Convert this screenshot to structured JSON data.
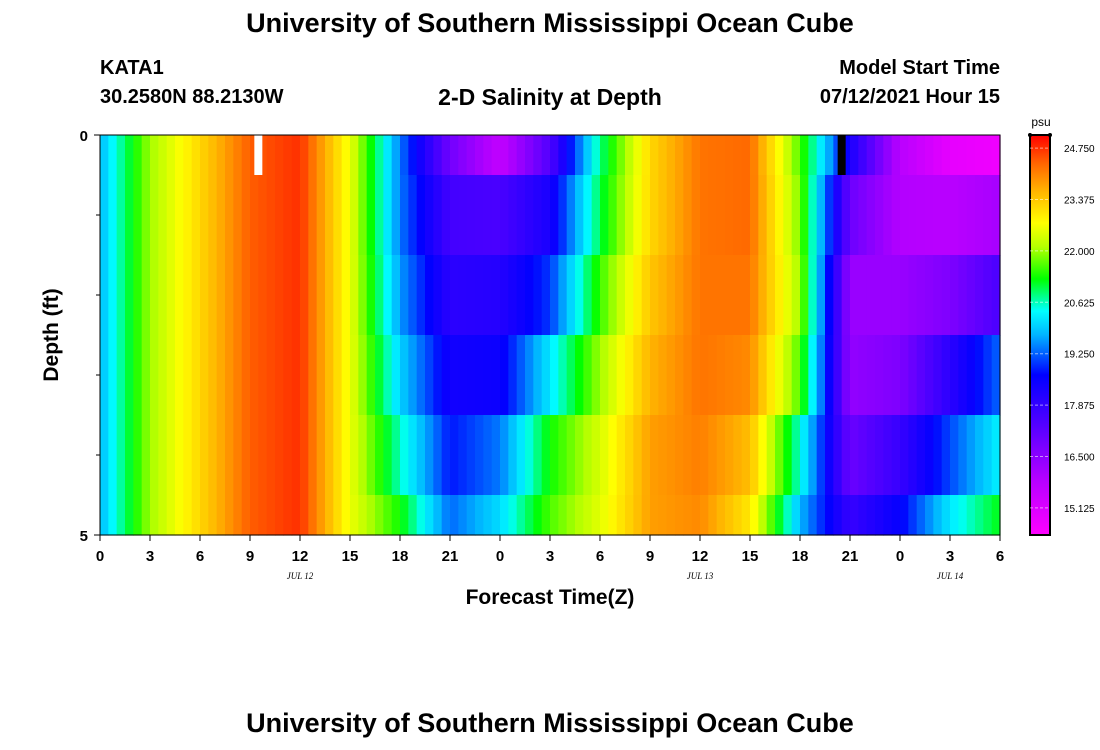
{
  "page": {
    "title": "University of Southern Mississippi Ocean Cube",
    "footer_title": "University of Southern Mississippi Ocean Cube",
    "station": "KATA1",
    "coordinates": "30.2580N  88.2130W",
    "subtitle": "2-D Salinity at Depth",
    "model_start_label": "Model Start Time",
    "model_start_value": "07/12/2021 Hour 15"
  },
  "chart_data": {
    "type": "heatmap",
    "title": "2-D Salinity at Depth",
    "xlabel": "Forecast Time(Z)",
    "ylabel": "Depth (ft)",
    "x_hours_range": [
      0,
      54
    ],
    "x_ticks": [
      {
        "hour": 0,
        "label": "0"
      },
      {
        "hour": 3,
        "label": "3"
      },
      {
        "hour": 6,
        "label": "6"
      },
      {
        "hour": 9,
        "label": "9"
      },
      {
        "hour": 12,
        "label": "12"
      },
      {
        "hour": 15,
        "label": "15"
      },
      {
        "hour": 18,
        "label": "18"
      },
      {
        "hour": 21,
        "label": "21"
      },
      {
        "hour": 24,
        "label": "0"
      },
      {
        "hour": 27,
        "label": "3"
      },
      {
        "hour": 30,
        "label": "6"
      },
      {
        "hour": 33,
        "label": "9"
      },
      {
        "hour": 36,
        "label": "12"
      },
      {
        "hour": 39,
        "label": "15"
      },
      {
        "hour": 42,
        "label": "18"
      },
      {
        "hour": 45,
        "label": "21"
      },
      {
        "hour": 48,
        "label": "0"
      },
      {
        "hour": 51,
        "label": "3"
      },
      {
        "hour": 54,
        "label": "6"
      }
    ],
    "date_labels": [
      {
        "hour": 12,
        "label": "JUL 12"
      },
      {
        "hour": 36,
        "label": "JUL 13"
      },
      {
        "hour": 51,
        "label": "JUL 14"
      }
    ],
    "ylim": [
      0,
      5
    ],
    "y_ticks": [
      {
        "value": 0,
        "label": "0"
      },
      {
        "value": 5,
        "label": "5"
      }
    ],
    "y_minor_ticks": [
      1,
      2,
      3,
      4
    ],
    "depth_levels": [
      0.25,
      1.0,
      2.0,
      3.0,
      4.0,
      4.75
    ],
    "depth_level_bounds": [
      [
        0,
        0.5
      ],
      [
        0.5,
        1.5
      ],
      [
        1.5,
        2.5
      ],
      [
        2.5,
        3.5
      ],
      [
        3.5,
        4.5
      ],
      [
        4.5,
        5
      ]
    ],
    "salinity_psu": [
      [
        19.8,
        22.0,
        23.2,
        24.4,
        24.75,
        22.6,
        19.4,
        16.9,
        15.6,
        17.4,
        20.8,
        23.2,
        24.2,
        24.3,
        21.6,
        18.3,
        15.8,
        14.9,
        14.7
      ],
      [
        19.8,
        22.0,
        23.2,
        24.4,
        24.75,
        22.6,
        19.4,
        17.6,
        17.5,
        18.3,
        21.0,
        23.2,
        24.2,
        24.3,
        21.8,
        17.0,
        15.9,
        15.8,
        16.1
      ],
      [
        19.8,
        22.0,
        23.2,
        24.4,
        24.75,
        22.6,
        19.6,
        18.0,
        18.1,
        19.0,
        21.5,
        23.4,
        24.2,
        24.2,
        22.0,
        16.3,
        16.3,
        16.7,
        17.5
      ],
      [
        19.8,
        22.0,
        23.2,
        24.4,
        24.75,
        22.6,
        20.0,
        18.4,
        18.5,
        20.2,
        22.0,
        23.6,
        24.2,
        24.0,
        21.6,
        16.4,
        16.7,
        18.0,
        19.3
      ],
      [
        19.8,
        22.0,
        23.2,
        24.4,
        24.75,
        22.6,
        20.6,
        18.8,
        19.4,
        21.3,
        22.4,
        23.8,
        24.1,
        23.5,
        20.5,
        17.0,
        17.8,
        19.1,
        20.3
      ],
      [
        19.8,
        22.0,
        23.2,
        24.4,
        24.75,
        22.6,
        21.3,
        19.3,
        20.1,
        21.6,
        22.5,
        23.8,
        24.0,
        23.0,
        19.8,
        17.8,
        18.6,
        20.2,
        21.2
      ]
    ],
    "markers": [
      {
        "hour": 9.5,
        "color": "#ffffff",
        "meaning": "current time"
      },
      {
        "hour": 44.5,
        "color": "#000000",
        "meaning": "marker"
      }
    ],
    "colorbar": {
      "unit": "psu",
      "range": [
        14.4,
        25.1
      ],
      "tick_values": [
        24.75,
        23.375,
        22.0,
        20.625,
        19.25,
        17.875,
        16.5,
        15.125
      ],
      "tick_labels": [
        "24.750",
        "23.375",
        "22.000",
        "20.625",
        "19.250",
        "17.875",
        "16.500",
        "15.125"
      ]
    }
  }
}
